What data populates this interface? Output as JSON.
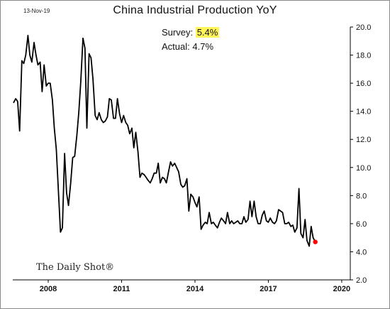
{
  "header": {
    "date": "13-Nov-19",
    "title": "China Industrial Production YoY"
  },
  "annotation": {
    "survey_label": "Survey:",
    "survey_value": "5.4%",
    "actual_label": "Actual:",
    "actual_value": "4.7%"
  },
  "brand": "The Daily Shot®",
  "colors": {
    "line": "#000000",
    "latest_marker": "#ff0000",
    "survey_highlight": "#fff55a",
    "axes": "#000000"
  },
  "chart_data": {
    "type": "line",
    "title": "China Industrial Production YoY",
    "xlabel": "",
    "ylabel": "",
    "xlim": [
      2006.55,
      2020.35
    ],
    "ylim": [
      2.0,
      20.0
    ],
    "x_ticks": [
      2008,
      2011,
      2014,
      2017,
      2020
    ],
    "x_tick_labels": [
      "2008",
      "2011",
      "2014",
      "2017",
      "2020"
    ],
    "y_ticks": [
      2.0,
      4.0,
      6.0,
      8.0,
      10.0,
      12.0,
      14.0,
      16.0,
      18.0,
      20.0
    ],
    "y_tick_labels": [
      "2.0",
      "4.0",
      "6.0",
      "8.0",
      "10.0",
      "12.0",
      "14.0",
      "16.0",
      "18.0",
      "20.0"
    ],
    "y_axis_side": "right",
    "grid": false,
    "series": [
      {
        "values": [
          [
            2006.58,
            14.6
          ],
          [
            2006.67,
            14.9
          ],
          [
            2006.75,
            14.7
          ],
          [
            2006.83,
            12.6
          ],
          [
            2006.92,
            17.6
          ],
          [
            2007.0,
            17.4
          ],
          [
            2007.08,
            18.0
          ],
          [
            2007.17,
            19.4
          ],
          [
            2007.25,
            18.0
          ],
          [
            2007.33,
            17.5
          ],
          [
            2007.42,
            18.9
          ],
          [
            2007.5,
            18.0
          ],
          [
            2007.58,
            17.3
          ],
          [
            2007.67,
            17.5
          ],
          [
            2007.75,
            15.4
          ],
          [
            2007.83,
            17.3
          ],
          [
            2007.92,
            15.8
          ],
          [
            2008.0,
            16.0
          ],
          [
            2008.08,
            16.0
          ],
          [
            2008.17,
            14.8
          ],
          [
            2008.25,
            12.8
          ],
          [
            2008.33,
            11.3
          ],
          [
            2008.42,
            8.2
          ],
          [
            2008.5,
            5.4
          ],
          [
            2008.58,
            5.7
          ],
          [
            2008.67,
            11.0
          ],
          [
            2008.75,
            8.2
          ],
          [
            2008.83,
            7.3
          ],
          [
            2008.92,
            8.9
          ],
          [
            2009.0,
            10.7
          ],
          [
            2009.08,
            10.8
          ],
          [
            2009.17,
            12.3
          ],
          [
            2009.25,
            13.9
          ],
          [
            2009.33,
            16.1
          ],
          [
            2009.42,
            19.2
          ],
          [
            2009.5,
            18.5
          ],
          [
            2009.58,
            12.8
          ],
          [
            2009.67,
            18.1
          ],
          [
            2009.75,
            17.8
          ],
          [
            2009.83,
            16.3
          ],
          [
            2009.92,
            13.7
          ],
          [
            2010.0,
            13.4
          ],
          [
            2010.08,
            13.9
          ],
          [
            2010.17,
            13.4
          ],
          [
            2010.25,
            13.2
          ],
          [
            2010.33,
            13.3
          ],
          [
            2010.42,
            13.6
          ],
          [
            2010.5,
            14.9
          ],
          [
            2010.58,
            14.8
          ],
          [
            2010.67,
            13.5
          ],
          [
            2010.75,
            13.5
          ],
          [
            2010.83,
            14.9
          ],
          [
            2010.92,
            13.8
          ],
          [
            2011.0,
            13.2
          ],
          [
            2011.08,
            13.7
          ],
          [
            2011.17,
            13.2
          ],
          [
            2011.25,
            13.0
          ],
          [
            2011.33,
            12.4
          ],
          [
            2011.42,
            12.8
          ],
          [
            2011.5,
            11.4
          ],
          [
            2011.58,
            12.5
          ],
          [
            2011.67,
            11.1
          ],
          [
            2011.75,
            9.3
          ],
          [
            2011.83,
            9.6
          ],
          [
            2011.92,
            9.5
          ],
          [
            2012.0,
            9.3
          ],
          [
            2012.08,
            9.1
          ],
          [
            2012.17,
            8.9
          ],
          [
            2012.25,
            9.2
          ],
          [
            2012.33,
            9.6
          ],
          [
            2012.42,
            9.6
          ],
          [
            2012.5,
            10.3
          ],
          [
            2012.58,
            8.9
          ],
          [
            2012.67,
            9.3
          ],
          [
            2012.75,
            9.2
          ],
          [
            2012.83,
            8.9
          ],
          [
            2012.92,
            9.7
          ],
          [
            2013.0,
            10.4
          ],
          [
            2013.08,
            10.1
          ],
          [
            2013.17,
            10.3
          ],
          [
            2013.25,
            10.0
          ],
          [
            2013.33,
            9.7
          ],
          [
            2013.42,
            8.8
          ],
          [
            2013.5,
            8.6
          ],
          [
            2013.58,
            8.7
          ],
          [
            2013.67,
            9.2
          ],
          [
            2013.75,
            6.9
          ],
          [
            2013.83,
            8.1
          ],
          [
            2013.92,
            7.9
          ],
          [
            2014.0,
            7.5
          ],
          [
            2014.08,
            7.2
          ],
          [
            2014.17,
            7.9
          ],
          [
            2014.25,
            5.6
          ],
          [
            2014.33,
            5.9
          ],
          [
            2014.42,
            6.1
          ],
          [
            2014.5,
            6.0
          ],
          [
            2014.58,
            6.8
          ],
          [
            2014.67,
            6.0
          ],
          [
            2014.75,
            6.1
          ],
          [
            2014.83,
            5.9
          ],
          [
            2014.92,
            5.7
          ],
          [
            2015.0,
            6.1
          ],
          [
            2015.08,
            6.4
          ],
          [
            2015.17,
            6.2
          ],
          [
            2015.25,
            6.0
          ],
          [
            2015.33,
            6.8
          ],
          [
            2015.42,
            6.0
          ],
          [
            2015.5,
            6.2
          ],
          [
            2015.58,
            6.0
          ],
          [
            2015.67,
            6.1
          ],
          [
            2015.75,
            6.2
          ],
          [
            2015.83,
            6.0
          ],
          [
            2015.92,
            6.0
          ],
          [
            2016.0,
            6.5
          ],
          [
            2016.08,
            6.1
          ],
          [
            2016.17,
            6.3
          ],
          [
            2016.25,
            7.6
          ],
          [
            2016.33,
            6.5
          ],
          [
            2016.42,
            7.6
          ],
          [
            2016.5,
            6.5
          ],
          [
            2016.58,
            6.0
          ],
          [
            2016.67,
            6.0
          ],
          [
            2016.75,
            6.6
          ],
          [
            2016.83,
            6.9
          ],
          [
            2016.92,
            6.2
          ],
          [
            2017.0,
            6.1
          ],
          [
            2017.08,
            6.4
          ],
          [
            2017.17,
            6.1
          ],
          [
            2017.25,
            6.0
          ],
          [
            2017.33,
            6.2
          ],
          [
            2017.42,
            7.0
          ],
          [
            2017.5,
            6.9
          ],
          [
            2017.58,
            6.8
          ],
          [
            2017.67,
            6.0
          ],
          [
            2017.75,
            6.0
          ],
          [
            2017.83,
            6.1
          ],
          [
            2017.92,
            5.8
          ],
          [
            2018.0,
            5.9
          ],
          [
            2018.08,
            5.4
          ],
          [
            2018.17,
            5.7
          ],
          [
            2018.25,
            8.5
          ],
          [
            2018.33,
            5.3
          ],
          [
            2018.42,
            5.0
          ],
          [
            2018.5,
            6.3
          ],
          [
            2018.58,
            4.8
          ],
          [
            2018.67,
            4.4
          ],
          [
            2018.75,
            5.8
          ],
          [
            2018.83,
            5.0
          ],
          [
            2018.92,
            4.7
          ]
        ]
      }
    ],
    "latest_point": {
      "x": 2018.92,
      "y": 4.7
    }
  }
}
